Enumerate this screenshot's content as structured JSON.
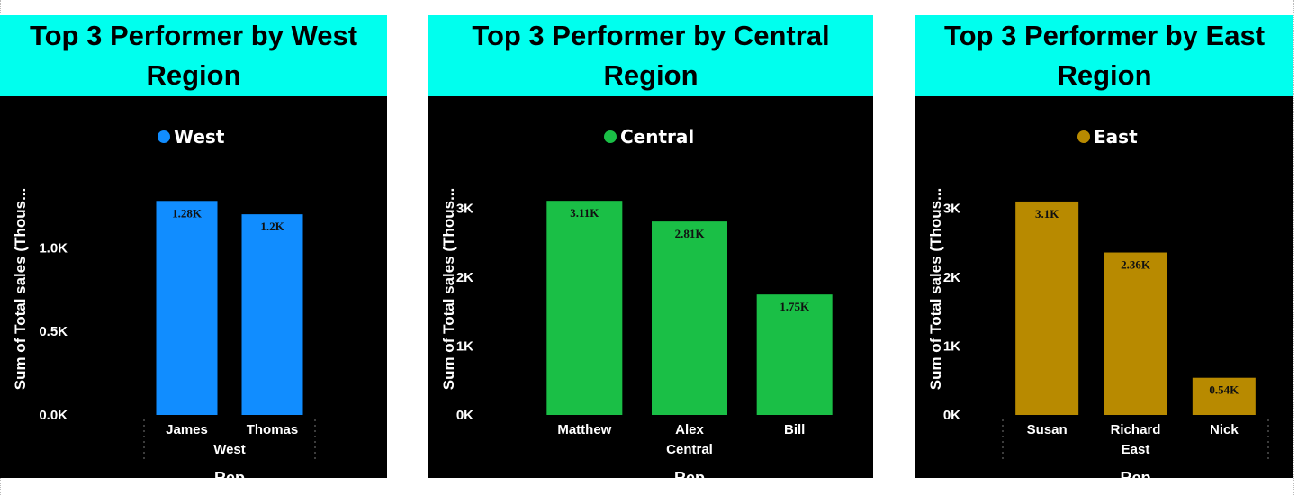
{
  "chart_data": [
    {
      "type": "bar",
      "title": "Top 3 Performer by West Region",
      "legend": "West",
      "color": "#118dff",
      "categories": [
        "James",
        "Thomas"
      ],
      "values": [
        1.28,
        1.2
      ],
      "data_labels": [
        "1.28K",
        "1.2K"
      ],
      "yticks": [
        0,
        0.5,
        1.0
      ],
      "ytick_labels": [
        "0.0K",
        "0.5K",
        "1.0K"
      ],
      "ylim": [
        0,
        1.4
      ],
      "ylabel": "Sum of Total sales (Thous...",
      "xgroup": "West",
      "xlabel": "Rep",
      "legend_position": "top-center",
      "grid": false
    },
    {
      "type": "bar",
      "title": "Top 3 Performer by Central Region",
      "legend": "Central",
      "color": "#1abf46",
      "categories": [
        "Matthew",
        "Alex",
        "Bill"
      ],
      "values": [
        3.11,
        2.81,
        1.75
      ],
      "data_labels": [
        "3.11K",
        "2.81K",
        "1.75K"
      ],
      "yticks": [
        0,
        1,
        2,
        3
      ],
      "ytick_labels": [
        "0K",
        "1K",
        "2K",
        "3K"
      ],
      "ylim": [
        0,
        3.4
      ],
      "ylabel": "Sum of Total sales (Thous...",
      "xgroup": "Central",
      "xlabel": "Rep",
      "legend_position": "top-center",
      "grid": false
    },
    {
      "type": "bar",
      "title": "Top 3 Performer by East Region",
      "legend": "East",
      "color": "#b88a00",
      "categories": [
        "Susan",
        "Richard",
        "Nick"
      ],
      "values": [
        3.1,
        2.36,
        0.54
      ],
      "data_labels": [
        "3.1K",
        "2.36K",
        "0.54K"
      ],
      "yticks": [
        0,
        1,
        2,
        3
      ],
      "ytick_labels": [
        "0K",
        "1K",
        "2K",
        "3K"
      ],
      "ylim": [
        0,
        3.4
      ],
      "ylabel": "Sum of Total sales (Thous...",
      "xgroup": "East",
      "xlabel": "Rep",
      "legend_position": "top-center",
      "grid": false
    }
  ]
}
